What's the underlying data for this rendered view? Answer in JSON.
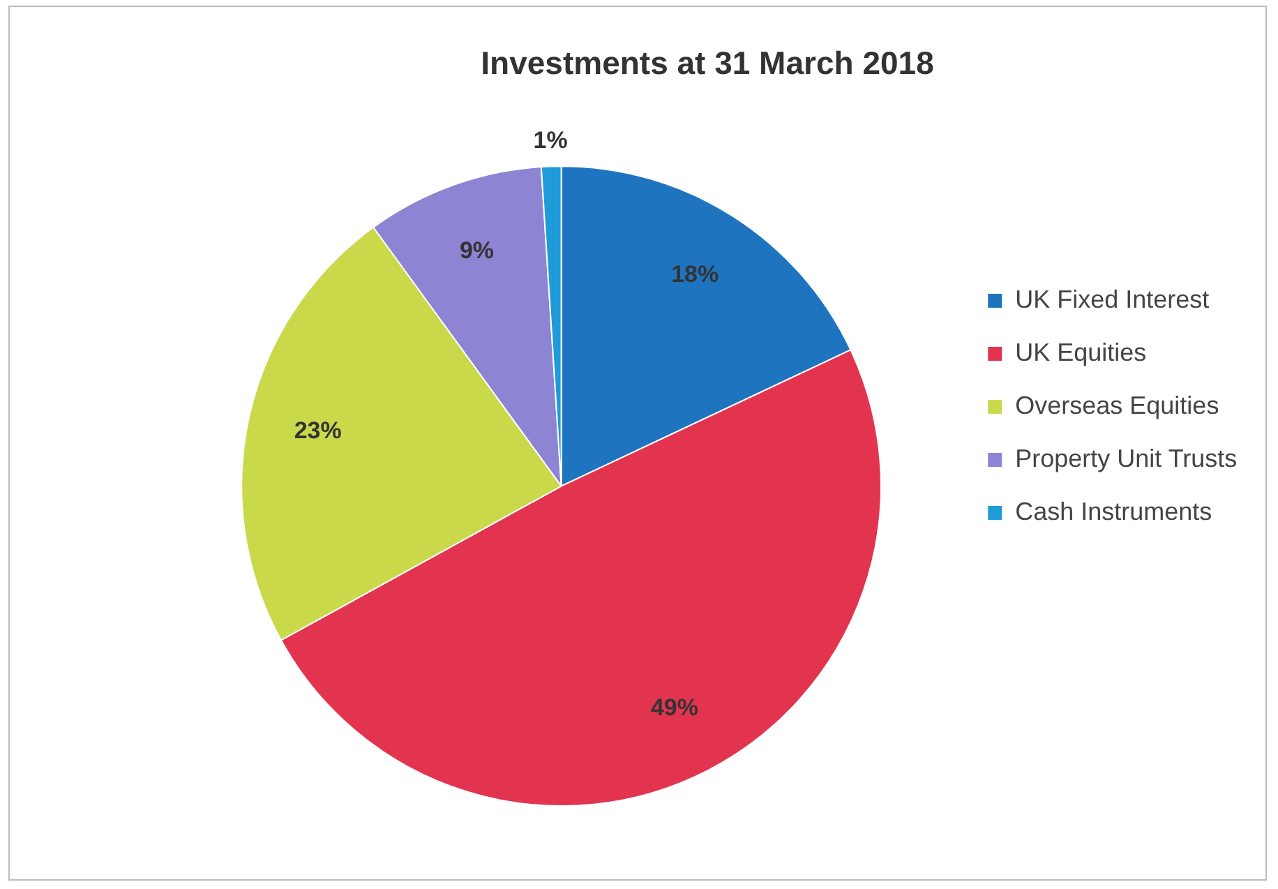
{
  "chart_data": {
    "type": "pie",
    "title": "Investments at 31 March 2018",
    "categories": [
      "UK Fixed Interest",
      "UK Equities",
      "Overseas Equities",
      "Property Unit Trusts",
      "Cash Instruments"
    ],
    "values": [
      18,
      49,
      23,
      9,
      1
    ],
    "value_labels": [
      "18%",
      "49%",
      "23%",
      "9%",
      "1%"
    ],
    "colors": [
      "#1f74c0",
      "#e3344f",
      "#c9d94a",
      "#8d84d4",
      "#1e9bd8"
    ],
    "legend": "right"
  }
}
